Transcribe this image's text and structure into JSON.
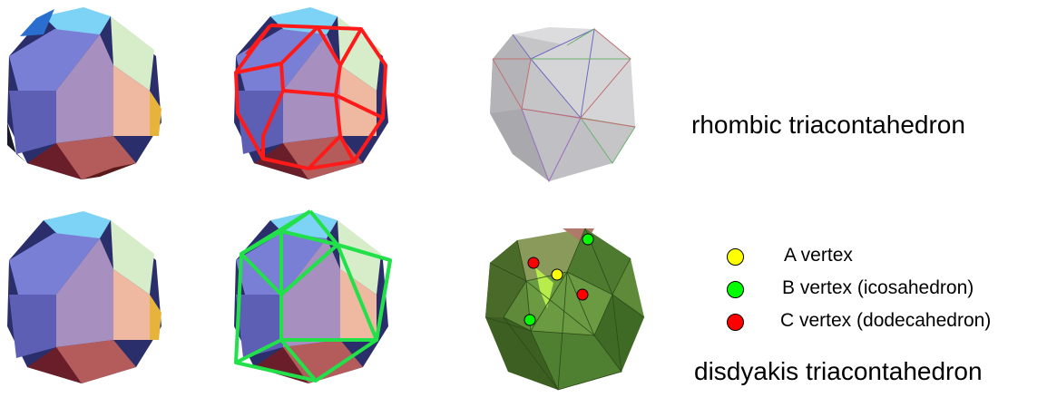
{
  "captions": {
    "top": "rhombic triacontahedron",
    "bottom": "disdyakis triacontahedron"
  },
  "legend": [
    {
      "label": "A vertex",
      "color": "#ffff00"
    },
    {
      "label": "B vertex (icosahedron)",
      "color": "#00ff00"
    },
    {
      "label": "C vertex (dodecahedron)",
      "color": "#ff0000"
    }
  ],
  "colors": {
    "face_blue": "#7b80d8",
    "face_purple": "#a890bf",
    "face_peach": "#e9b8a0",
    "face_red": "#b45d5d",
    "face_light_blue": "#73cef2",
    "dodecahedron_edges": "#ff1a1a",
    "icosahedron_edges": "#22e04a"
  }
}
